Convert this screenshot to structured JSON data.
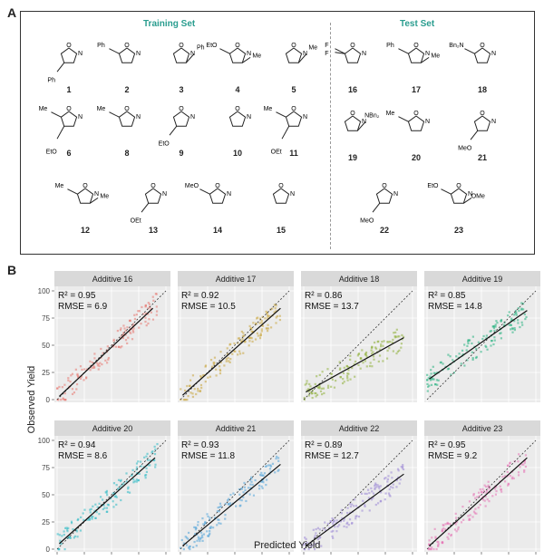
{
  "panelA": {
    "letter": "A",
    "training_title": "Training Set",
    "test_title": "Test Set",
    "compounds": [
      {
        "num": "1",
        "subs": [
          {
            "pos": "c4",
            "label": "Ph"
          }
        ]
      },
      {
        "num": "2",
        "subs": [
          {
            "pos": "c5",
            "label": "Ph"
          }
        ]
      },
      {
        "num": "3",
        "subs": [
          {
            "pos": "c3",
            "label": "Ph"
          }
        ]
      },
      {
        "num": "4",
        "subs": [
          {
            "pos": "c5",
            "label": "EtO"
          },
          {
            "pos": "c3",
            "label": "Me"
          }
        ]
      },
      {
        "num": "5",
        "subs": [
          {
            "pos": "c3",
            "label": "Me"
          }
        ]
      },
      {
        "num": "6",
        "subs": [
          {
            "pos": "c5",
            "label": "Me"
          },
          {
            "pos": "c4",
            "label": "EtO"
          }
        ]
      },
      {
        "num": "8",
        "subs": [
          {
            "pos": "c5",
            "label": "Me"
          }
        ]
      },
      {
        "num": "9",
        "subs": [
          {
            "pos": "c4",
            "label": "EtO"
          }
        ]
      },
      {
        "num": "10",
        "subs": []
      },
      {
        "num": "11",
        "subs": [
          {
            "pos": "c5",
            "label": "Me"
          },
          {
            "pos": "c4",
            "label": "OEt"
          }
        ]
      },
      {
        "num": "12",
        "subs": [
          {
            "pos": "c5",
            "label": "Me"
          },
          {
            "pos": "c3",
            "label": "Me"
          }
        ]
      },
      {
        "num": "13",
        "subs": [
          {
            "pos": "c4",
            "label": "OEt"
          }
        ]
      },
      {
        "num": "14",
        "subs": [
          {
            "pos": "c5",
            "label": "MeO"
          }
        ]
      },
      {
        "num": "15",
        "subs": []
      },
      {
        "num": "16",
        "subs": [
          {
            "pos": "c5",
            "label": "F"
          },
          {
            "pos": "c5",
            "label": "F"
          }
        ]
      },
      {
        "num": "17",
        "subs": [
          {
            "pos": "c5",
            "label": "Ph"
          },
          {
            "pos": "c3",
            "label": "Me"
          }
        ]
      },
      {
        "num": "18",
        "subs": [
          {
            "pos": "c5",
            "label": "Bn₂N"
          }
        ]
      },
      {
        "num": "19",
        "subs": [
          {
            "pos": "c3",
            "label": "NBn₂"
          }
        ]
      },
      {
        "num": "20",
        "subs": [
          {
            "pos": "c5",
            "label": "Me"
          }
        ]
      },
      {
        "num": "21",
        "subs": [
          {
            "pos": "c4",
            "label": "MeO"
          }
        ]
      },
      {
        "num": "22",
        "subs": [
          {
            "pos": "c4",
            "label": "MeO"
          }
        ]
      },
      {
        "num": "23",
        "subs": [
          {
            "pos": "c5",
            "label": "EtO"
          },
          {
            "pos": "c3",
            "label": "OMe"
          }
        ]
      }
    ]
  },
  "panelB": {
    "letter": "B",
    "xlabel": "Predicted Yield",
    "ylabel": "Observed Yield"
  },
  "chart_data": {
    "type": "scatter",
    "xlabel": "Predicted Yield",
    "ylabel": "Observed Yield",
    "xlim": [
      0,
      100
    ],
    "ylim": [
      0,
      100
    ],
    "xticks": [
      "0",
      "25",
      "50",
      "75",
      "100"
    ],
    "yticks": [
      "0",
      "25",
      "50",
      "75",
      "100"
    ],
    "grid": true,
    "reference_line": "y = x (dashed)",
    "facets": [
      {
        "title": "Additive 16",
        "r2": "R² = 0.95",
        "rmse": "RMSE = 6.9",
        "color": "#e8766f",
        "fit": [
          [
            2,
            3
          ],
          [
            88,
            84
          ]
        ]
      },
      {
        "title": "Additive 17",
        "r2": "R² = 0.92",
        "rmse": "RMSE = 10.5",
        "color": "#c9a43a",
        "fit": [
          [
            2,
            4
          ],
          [
            92,
            84
          ]
        ]
      },
      {
        "title": "Additive 18",
        "r2": "R² = 0.86",
        "rmse": "RMSE = 13.7",
        "color": "#8fb13a",
        "fit": [
          [
            2,
            7
          ],
          [
            92,
            57
          ]
        ]
      },
      {
        "title": "Additive 19",
        "r2": "R² = 0.85",
        "rmse": "RMSE = 14.8",
        "color": "#22b07e",
        "fit": [
          [
            2,
            19
          ],
          [
            92,
            82
          ]
        ]
      },
      {
        "title": "Additive 20",
        "r2": "R² = 0.94",
        "rmse": "RMSE = 8.6",
        "color": "#29b9c4",
        "fit": [
          [
            2,
            5
          ],
          [
            90,
            84
          ]
        ]
      },
      {
        "title": "Additive 21",
        "r2": "R² = 0.93",
        "rmse": "RMSE = 11.8",
        "color": "#4ea3d8",
        "fit": [
          [
            2,
            3
          ],
          [
            92,
            78
          ]
        ]
      },
      {
        "title": "Additive 22",
        "r2": "R² = 0.89",
        "rmse": "RMSE = 12.7",
        "color": "#9b86d6",
        "fit": [
          [
            2,
            3
          ],
          [
            92,
            69
          ]
        ]
      },
      {
        "title": "Additive 23",
        "r2": "R² = 0.95",
        "rmse": "RMSE = 9.2",
        "color": "#e673b5",
        "fit": [
          [
            2,
            3
          ],
          [
            92,
            84
          ]
        ]
      }
    ]
  }
}
